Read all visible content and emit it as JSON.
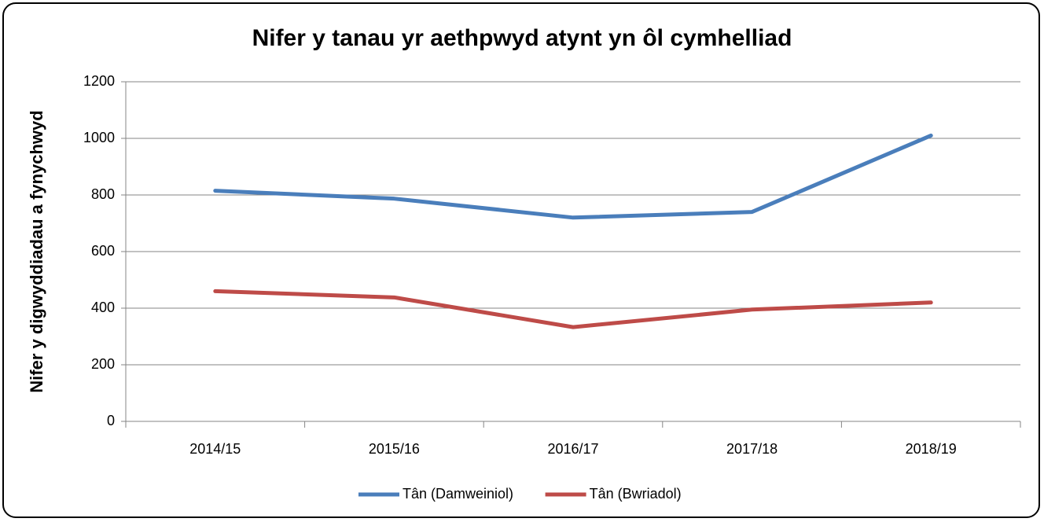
{
  "chart_data": {
    "type": "line",
    "title": "Nifer y tanau yr aethpwyd atynt yn ôl cymhelliad",
    "y_label": "Nifer y digwyddiadau a fynychwyd",
    "categories": [
      "2014/15",
      "2015/16",
      "2016/17",
      "2017/18",
      "2018/19"
    ],
    "series": [
      {
        "name": "Tân (Damweiniol)",
        "color": "#4a7ebb",
        "values": [
          815,
          787,
          720,
          740,
          1010
        ]
      },
      {
        "name": "Tân (Bwriadol)",
        "color": "#be4b48",
        "values": [
          460,
          438,
          333,
          395,
          420
        ]
      }
    ],
    "ylim": [
      0,
      1200
    ],
    "yticks": [
      0,
      200,
      400,
      600,
      800,
      1000,
      1200
    ],
    "grid": true,
    "legend": "bottom"
  }
}
